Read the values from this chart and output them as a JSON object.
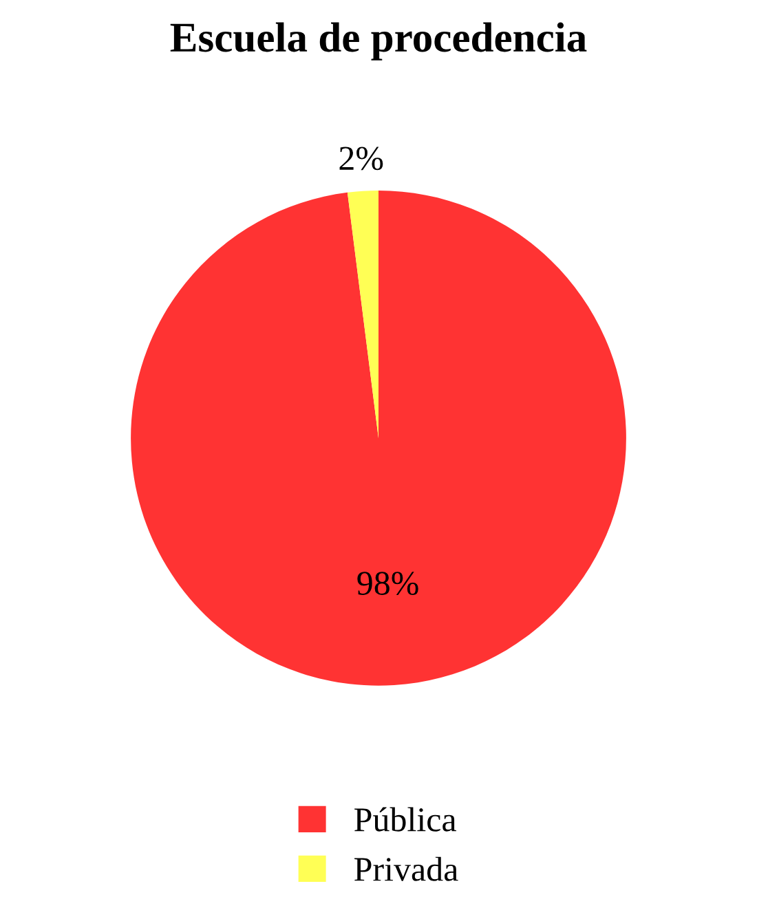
{
  "chart_data": {
    "type": "pie",
    "title": "Escuela de procedencia",
    "categories": [
      "Pública",
      "Privada"
    ],
    "values": [
      98,
      2
    ],
    "colors": [
      "#ff3333",
      "#ffff55"
    ],
    "value_labels": [
      "98%",
      "2%"
    ],
    "legend": "bottom"
  }
}
